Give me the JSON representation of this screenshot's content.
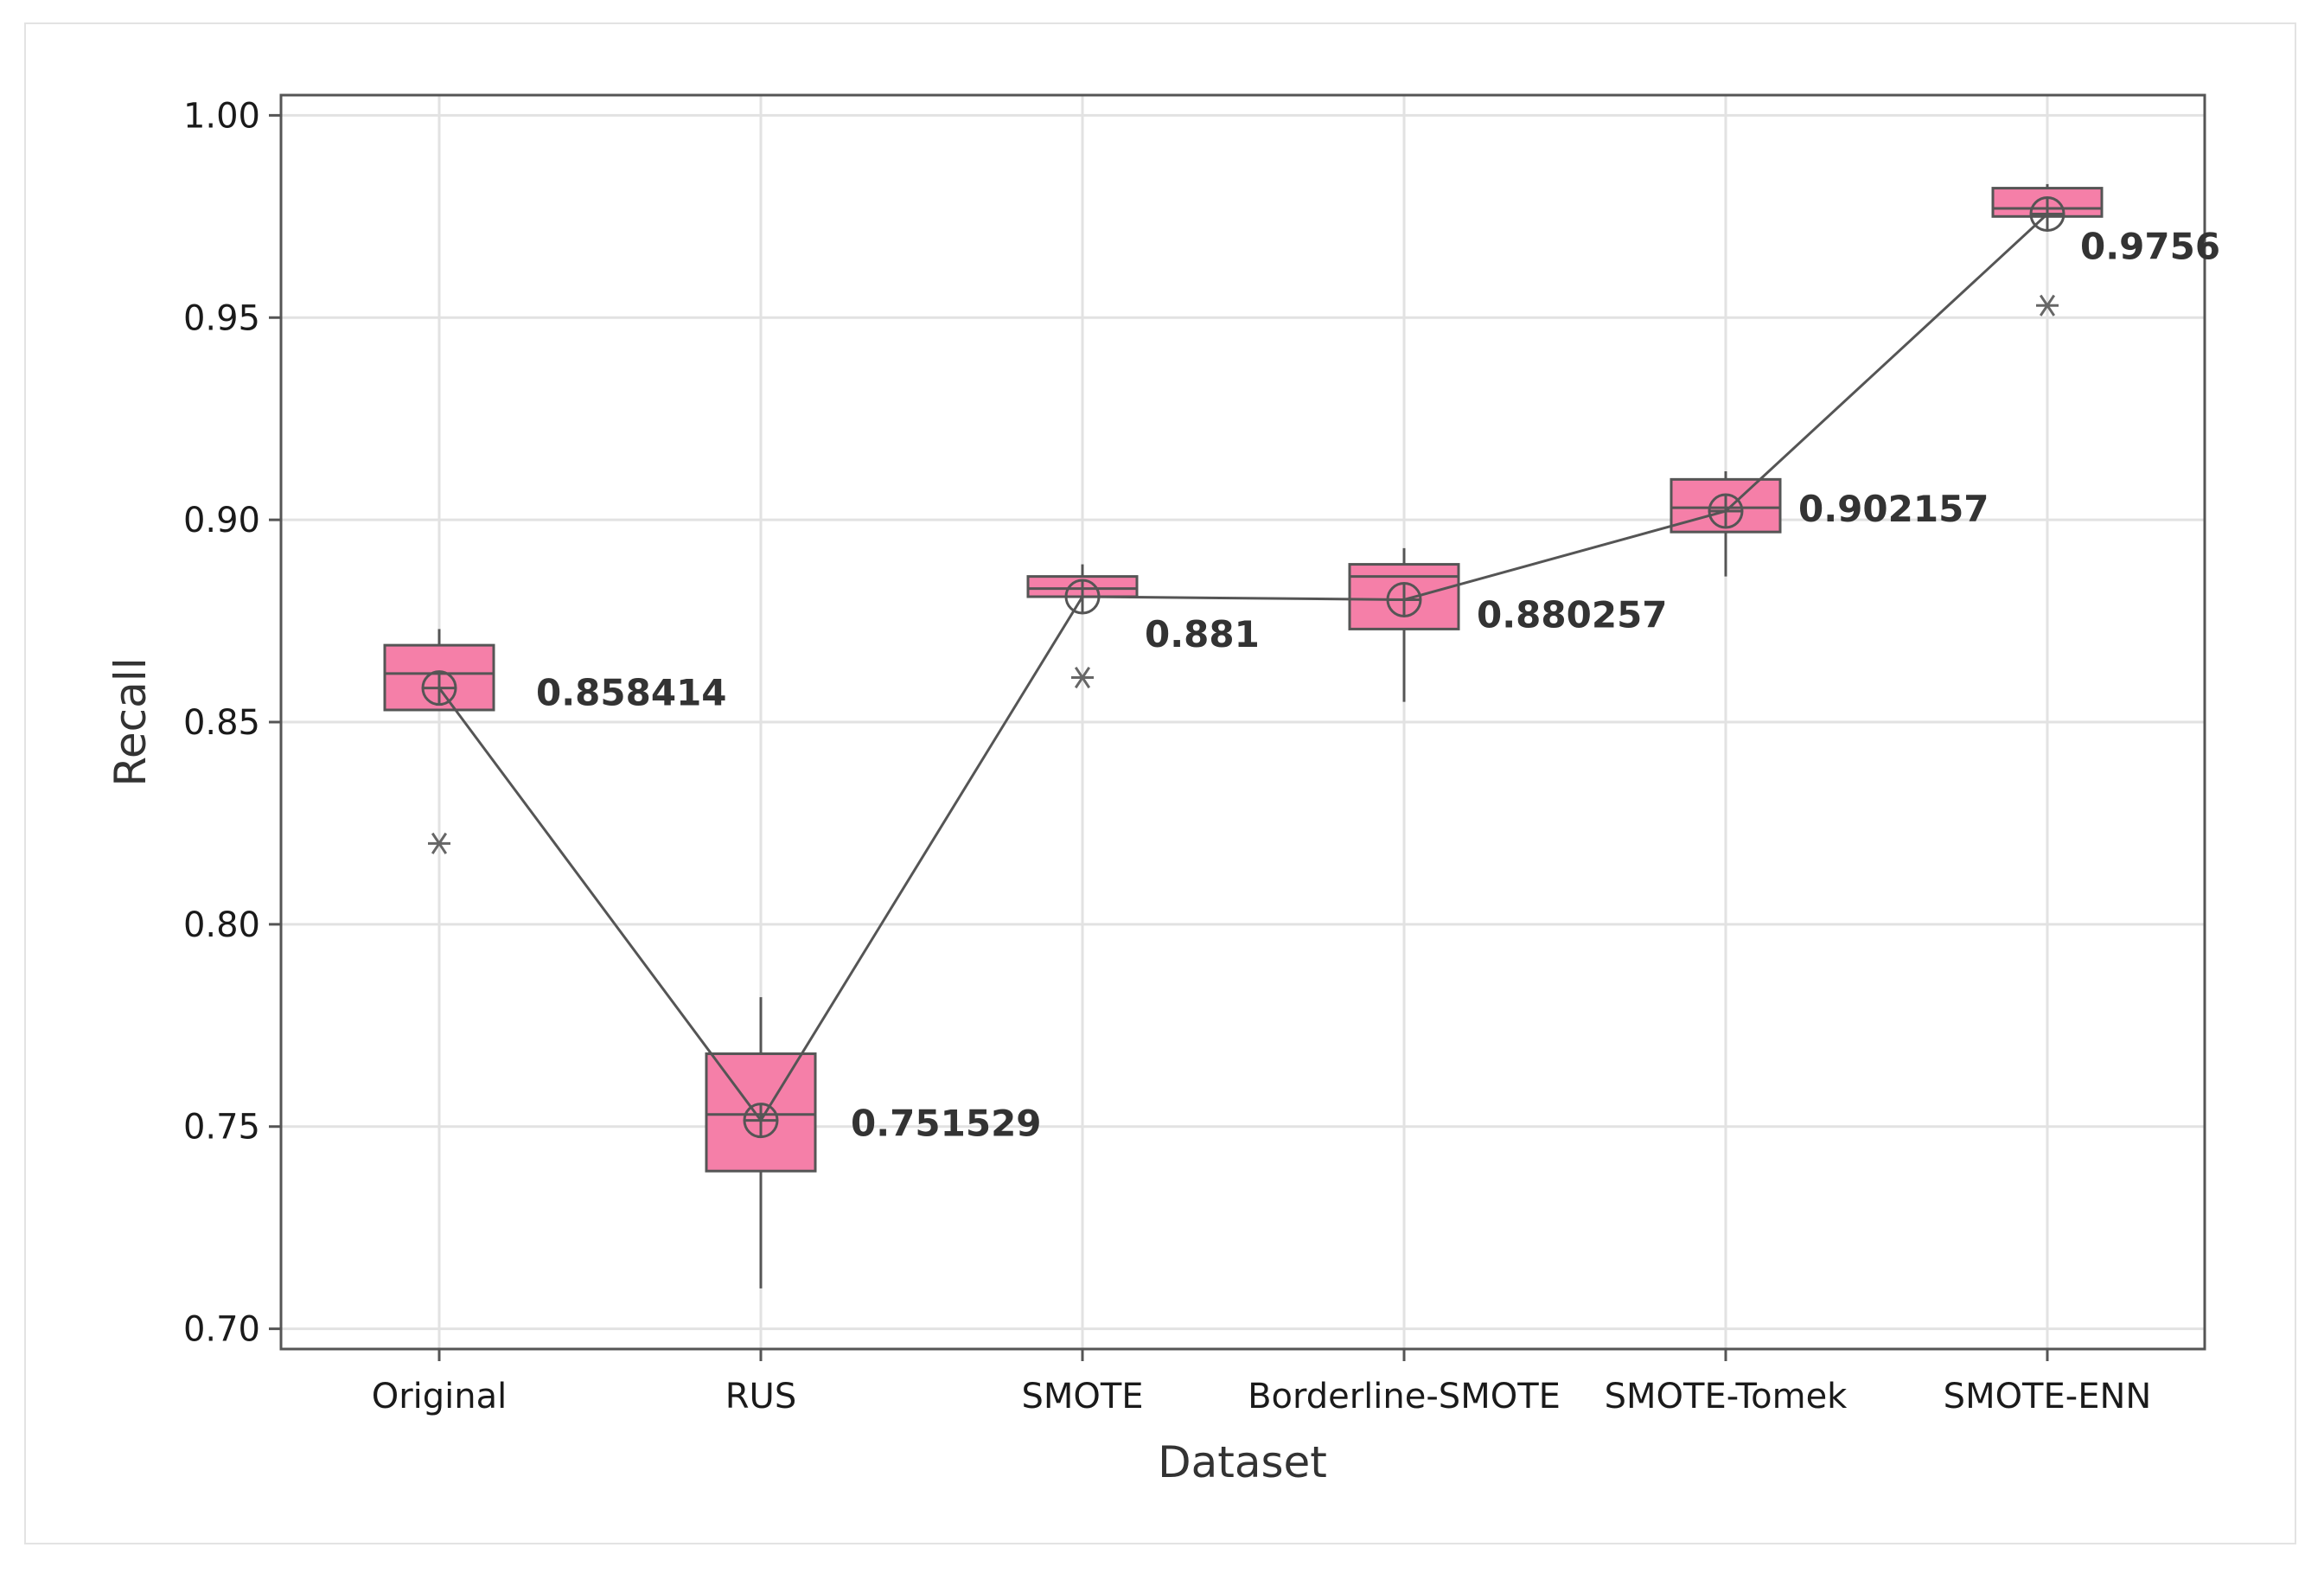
{
  "chart_data": {
    "type": "boxplot",
    "xlabel": "Dataset",
    "ylabel": "Recall",
    "ylim": [
      0.695,
      1.005
    ],
    "yticks": [
      "0.70",
      "0.75",
      "0.80",
      "0.85",
      "0.90",
      "0.95",
      "1.00"
    ],
    "grid": true,
    "colors": {
      "box_fill": "#f57fa8",
      "box_stroke": "#555555",
      "line": "#555555",
      "grid": "#e2e2e2",
      "outlier": "#666666"
    },
    "categories": [
      "Original",
      "RUS",
      "SMOTE",
      "Borderline-SMOTE",
      "SMOTE-Tomek",
      "SMOTE-ENN"
    ],
    "boxes": [
      {
        "category": "Original",
        "whisker_low": 0.853,
        "q1": 0.853,
        "median": 0.862,
        "q3": 0.869,
        "whisker_high": 0.873,
        "mean": 0.858414,
        "outliers": [
          0.82
        ]
      },
      {
        "category": "RUS",
        "whisker_low": 0.71,
        "q1": 0.739,
        "median": 0.753,
        "q3": 0.768,
        "whisker_high": 0.782,
        "mean": 0.751529,
        "outliers": []
      },
      {
        "category": "SMOTE",
        "whisker_low": 0.881,
        "q1": 0.881,
        "median": 0.883,
        "q3": 0.886,
        "whisker_high": 0.889,
        "mean": 0.881,
        "outliers": [
          0.861
        ]
      },
      {
        "category": "Borderline-SMOTE",
        "whisker_low": 0.855,
        "q1": 0.873,
        "median": 0.886,
        "q3": 0.889,
        "whisker_high": 0.893,
        "mean": 0.880257,
        "outliers": []
      },
      {
        "category": "SMOTE-Tomek",
        "whisker_low": 0.886,
        "q1": 0.897,
        "median": 0.903,
        "q3": 0.91,
        "whisker_high": 0.912,
        "mean": 0.902157,
        "outliers": []
      },
      {
        "category": "SMOTE-ENN",
        "whisker_low": 0.975,
        "q1": 0.975,
        "median": 0.977,
        "q3": 0.982,
        "whisker_high": 0.983,
        "mean": 0.9756,
        "outliers": [
          0.953
        ]
      }
    ],
    "mean_labels": [
      "0.858414",
      "0.751529",
      "0.881",
      "0.880257",
      "0.902157",
      "0.9756"
    ]
  }
}
